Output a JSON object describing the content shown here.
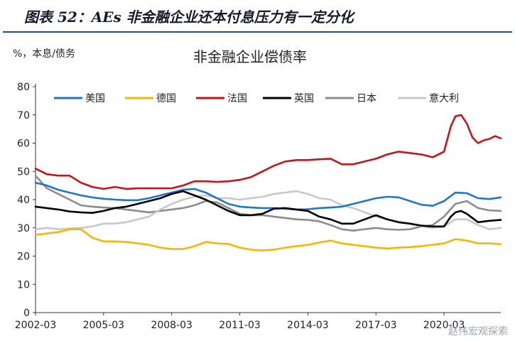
{
  "figure_title": "图表 52：AEs 非金融企业还本付息压力有一定分化",
  "watermark": "赵伟宏观探索",
  "chart_data": {
    "type": "line",
    "title": "非金融企业偿债率",
    "ylabel": "%，本息/债务",
    "ylim": [
      0,
      80
    ],
    "yticks": [
      0,
      10,
      20,
      30,
      40,
      50,
      60,
      70,
      80
    ],
    "xlim": [
      2002.0,
      2022.5
    ],
    "xtick_labels": [
      "2002-03",
      "2005-03",
      "2008-03",
      "2011-03",
      "2014-03",
      "2017-03",
      "2020-03"
    ],
    "xtick_values": [
      2002.0,
      2005.0,
      2008.0,
      2011.0,
      2014.0,
      2017.0,
      2020.0
    ],
    "grid": false,
    "legend_position": "top",
    "series": [
      {
        "name": "美国",
        "color": "#1f77c7",
        "points": [
          [
            2002.0,
            46
          ],
          [
            2002.5,
            45
          ],
          [
            2003.0,
            43.5
          ],
          [
            2003.5,
            42.5
          ],
          [
            2004.0,
            41.5
          ],
          [
            2004.5,
            40.8
          ],
          [
            2005.0,
            40.3
          ],
          [
            2005.5,
            40
          ],
          [
            2006.0,
            39.8
          ],
          [
            2006.5,
            39.8
          ],
          [
            2007.0,
            40.5
          ],
          [
            2007.5,
            41.5
          ],
          [
            2008.0,
            42.5
          ],
          [
            2008.5,
            43.5
          ],
          [
            2009.0,
            43.8
          ],
          [
            2009.5,
            42.5
          ],
          [
            2010.0,
            40.5
          ],
          [
            2010.5,
            38.5
          ],
          [
            2011.0,
            37.5
          ],
          [
            2011.5,
            37.2
          ],
          [
            2012.0,
            37
          ],
          [
            2012.5,
            37
          ],
          [
            2013.0,
            36.8
          ],
          [
            2013.5,
            36.5
          ],
          [
            2014.0,
            36.6
          ],
          [
            2014.5,
            37
          ],
          [
            2015.0,
            37.2
          ],
          [
            2015.5,
            37.5
          ],
          [
            2016.0,
            38.5
          ],
          [
            2016.5,
            39.5
          ],
          [
            2017.0,
            40.5
          ],
          [
            2017.5,
            41
          ],
          [
            2018.0,
            40.8
          ],
          [
            2018.5,
            39.5
          ],
          [
            2019.0,
            38.2
          ],
          [
            2019.5,
            37.8
          ],
          [
            2020.0,
            39.5
          ],
          [
            2020.5,
            42.5
          ],
          [
            2021.0,
            42.3
          ],
          [
            2021.5,
            40.5
          ],
          [
            2022.0,
            40.2
          ],
          [
            2022.5,
            40.8
          ]
        ]
      },
      {
        "name": "德国",
        "color": "#f5b800",
        "points": [
          [
            2002.0,
            27.5
          ],
          [
            2002.5,
            28
          ],
          [
            2003.0,
            28.5
          ],
          [
            2003.5,
            29.5
          ],
          [
            2004.0,
            29.5
          ],
          [
            2004.5,
            26.5
          ],
          [
            2005.0,
            25.2
          ],
          [
            2005.5,
            25.2
          ],
          [
            2006.0,
            25
          ],
          [
            2006.5,
            24.5
          ],
          [
            2007.0,
            24
          ],
          [
            2007.5,
            23
          ],
          [
            2008.0,
            22.5
          ],
          [
            2008.5,
            22.5
          ],
          [
            2009.0,
            23.5
          ],
          [
            2009.5,
            25
          ],
          [
            2010.0,
            24.5
          ],
          [
            2010.5,
            24.3
          ],
          [
            2011.0,
            23
          ],
          [
            2011.5,
            22.3
          ],
          [
            2012.0,
            22
          ],
          [
            2012.5,
            22.3
          ],
          [
            2013.0,
            23
          ],
          [
            2013.5,
            23.5
          ],
          [
            2014.0,
            24
          ],
          [
            2014.5,
            24.8
          ],
          [
            2015.0,
            25.5
          ],
          [
            2015.5,
            24.5
          ],
          [
            2016.0,
            24
          ],
          [
            2016.5,
            23.5
          ],
          [
            2017.0,
            23
          ],
          [
            2017.5,
            22.7
          ],
          [
            2018.0,
            23
          ],
          [
            2018.5,
            23.2
          ],
          [
            2019.0,
            23.5
          ],
          [
            2019.5,
            24
          ],
          [
            2020.0,
            24.5
          ],
          [
            2020.5,
            26
          ],
          [
            2021.0,
            25.5
          ],
          [
            2021.5,
            24.5
          ],
          [
            2022.0,
            24.5
          ],
          [
            2022.5,
            24.2
          ]
        ]
      },
      {
        "name": "法国",
        "color": "#c0161c",
        "points": [
          [
            2002.0,
            51
          ],
          [
            2002.5,
            49
          ],
          [
            2003.0,
            48.5
          ],
          [
            2003.5,
            48.5
          ],
          [
            2004.0,
            46
          ],
          [
            2004.5,
            44.5
          ],
          [
            2005.0,
            43.8
          ],
          [
            2005.5,
            44.5
          ],
          [
            2006.0,
            43.8
          ],
          [
            2006.5,
            44
          ],
          [
            2007.0,
            44
          ],
          [
            2007.5,
            44
          ],
          [
            2008.0,
            44
          ],
          [
            2008.5,
            45
          ],
          [
            2009.0,
            46.5
          ],
          [
            2009.5,
            46.5
          ],
          [
            2010.0,
            46.3
          ],
          [
            2010.5,
            46.5
          ],
          [
            2011.0,
            47
          ],
          [
            2011.5,
            48
          ],
          [
            2012.0,
            50
          ],
          [
            2012.5,
            52
          ],
          [
            2013.0,
            53.5
          ],
          [
            2013.5,
            54
          ],
          [
            2014.0,
            54
          ],
          [
            2014.5,
            54.3
          ],
          [
            2015.0,
            54.5
          ],
          [
            2015.5,
            52.5
          ],
          [
            2016.0,
            52.5
          ],
          [
            2016.5,
            53.5
          ],
          [
            2017.0,
            54.5
          ],
          [
            2017.5,
            56
          ],
          [
            2018.0,
            57
          ],
          [
            2018.5,
            56.5
          ],
          [
            2019.0,
            56
          ],
          [
            2019.5,
            55
          ],
          [
            2020.0,
            57
          ],
          [
            2020.3,
            66
          ],
          [
            2020.5,
            69.5
          ],
          [
            2020.75,
            70
          ],
          [
            2021.0,
            67
          ],
          [
            2021.25,
            62
          ],
          [
            2021.5,
            60
          ],
          [
            2021.75,
            61
          ],
          [
            2022.0,
            61.5
          ],
          [
            2022.25,
            62.5
          ],
          [
            2022.5,
            61.7
          ]
        ]
      },
      {
        "name": "英国",
        "color": "#000000",
        "points": [
          [
            2002.0,
            37.5
          ],
          [
            2002.5,
            37
          ],
          [
            2003.0,
            36.5
          ],
          [
            2003.5,
            35.8
          ],
          [
            2004.0,
            35.5
          ],
          [
            2004.5,
            35.3
          ],
          [
            2005.0,
            36
          ],
          [
            2005.5,
            37
          ],
          [
            2006.0,
            37.5
          ],
          [
            2006.5,
            38.5
          ],
          [
            2007.0,
            39.5
          ],
          [
            2007.5,
            40.5
          ],
          [
            2008.0,
            42
          ],
          [
            2008.5,
            43
          ],
          [
            2009.0,
            41.5
          ],
          [
            2009.5,
            40
          ],
          [
            2010.0,
            38
          ],
          [
            2010.5,
            36
          ],
          [
            2011.0,
            34.5
          ],
          [
            2011.5,
            34.5
          ],
          [
            2012.0,
            35
          ],
          [
            2012.5,
            36.8
          ],
          [
            2013.0,
            37
          ],
          [
            2013.5,
            36.5
          ],
          [
            2014.0,
            36
          ],
          [
            2014.5,
            34
          ],
          [
            2015.0,
            33
          ],
          [
            2015.5,
            31.5
          ],
          [
            2016.0,
            31.5
          ],
          [
            2016.5,
            33
          ],
          [
            2017.0,
            34.5
          ],
          [
            2017.5,
            33
          ],
          [
            2018.0,
            32
          ],
          [
            2018.5,
            31.5
          ],
          [
            2019.0,
            30.8
          ],
          [
            2019.5,
            30.5
          ],
          [
            2020.0,
            30.5
          ],
          [
            2020.3,
            34
          ],
          [
            2020.5,
            35.5
          ],
          [
            2020.75,
            36
          ],
          [
            2021.0,
            35
          ],
          [
            2021.5,
            32
          ],
          [
            2022.0,
            32.5
          ],
          [
            2022.5,
            32.8
          ]
        ]
      },
      {
        "name": "日本",
        "color": "#8c8c8c",
        "points": [
          [
            2002.0,
            48.5
          ],
          [
            2002.5,
            44
          ],
          [
            2003.0,
            42
          ],
          [
            2003.5,
            40
          ],
          [
            2004.0,
            38
          ],
          [
            2004.5,
            37.5
          ],
          [
            2005.0,
            37.2
          ],
          [
            2005.5,
            37
          ],
          [
            2006.0,
            36.5
          ],
          [
            2006.5,
            36
          ],
          [
            2007.0,
            35.5
          ],
          [
            2007.5,
            36
          ],
          [
            2008.0,
            36.5
          ],
          [
            2008.5,
            37
          ],
          [
            2009.0,
            38
          ],
          [
            2009.5,
            39.5
          ],
          [
            2010.0,
            39
          ],
          [
            2010.5,
            37
          ],
          [
            2011.0,
            35
          ],
          [
            2011.5,
            34.5
          ],
          [
            2012.0,
            34.5
          ],
          [
            2012.5,
            34
          ],
          [
            2013.0,
            33.5
          ],
          [
            2013.5,
            33
          ],
          [
            2014.0,
            32.8
          ],
          [
            2014.5,
            32.3
          ],
          [
            2015.0,
            31
          ],
          [
            2015.5,
            29.5
          ],
          [
            2016.0,
            29
          ],
          [
            2016.5,
            29.5
          ],
          [
            2017.0,
            30
          ],
          [
            2017.5,
            29.5
          ],
          [
            2018.0,
            29.3
          ],
          [
            2018.5,
            29.5
          ],
          [
            2019.0,
            30.5
          ],
          [
            2019.5,
            31
          ],
          [
            2020.0,
            34
          ],
          [
            2020.5,
            38.5
          ],
          [
            2021.0,
            39.5
          ],
          [
            2021.5,
            37
          ],
          [
            2022.0,
            36.2
          ],
          [
            2022.5,
            36
          ]
        ]
      },
      {
        "name": "意大利",
        "color": "#c8c8c8",
        "points": [
          [
            2002.0,
            29.5
          ],
          [
            2002.5,
            30
          ],
          [
            2003.0,
            29.5
          ],
          [
            2003.5,
            29.8
          ],
          [
            2004.0,
            30
          ],
          [
            2004.5,
            30.5
          ],
          [
            2005.0,
            31.5
          ],
          [
            2005.5,
            31.5
          ],
          [
            2006.0,
            32
          ],
          [
            2006.5,
            33
          ],
          [
            2007.0,
            34
          ],
          [
            2007.5,
            36.5
          ],
          [
            2008.0,
            38.5
          ],
          [
            2008.5,
            40
          ],
          [
            2009.0,
            41
          ],
          [
            2009.5,
            41.5
          ],
          [
            2010.0,
            40.5
          ],
          [
            2010.5,
            40.5
          ],
          [
            2011.0,
            40
          ],
          [
            2011.5,
            40.5
          ],
          [
            2012.0,
            41
          ],
          [
            2012.5,
            42
          ],
          [
            2013.0,
            42.5
          ],
          [
            2013.5,
            43
          ],
          [
            2014.0,
            42
          ],
          [
            2014.5,
            40.5
          ],
          [
            2015.0,
            40
          ],
          [
            2015.5,
            38
          ],
          [
            2016.0,
            37
          ],
          [
            2016.5,
            35.5
          ],
          [
            2017.0,
            34
          ],
          [
            2017.5,
            33
          ],
          [
            2018.0,
            32
          ],
          [
            2018.5,
            31.5
          ],
          [
            2019.0,
            30.5
          ],
          [
            2019.5,
            30
          ],
          [
            2020.0,
            30.5
          ],
          [
            2020.5,
            33
          ],
          [
            2021.0,
            33
          ],
          [
            2021.5,
            31
          ],
          [
            2022.0,
            29.5
          ],
          [
            2022.5,
            30
          ]
        ]
      }
    ]
  }
}
